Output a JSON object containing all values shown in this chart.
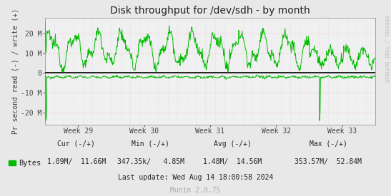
{
  "title": "Disk throughput for /dev/sdh - by month",
  "ylabel": "Pr second read (-) / write (+)",
  "background_color": "#e8e8e8",
  "plot_bg_color": "#f0f0f0",
  "grid_color_h": "#ffaaaa",
  "grid_color_v": "#ccccff",
  "line_color": "#00bb00",
  "zero_line_color": "#000000",
  "border_color": "#aaaaaa",
  "ylim": [
    -26000000,
    28000000
  ],
  "yticks": [
    -20000000,
    -10000000,
    0,
    10000000,
    20000000
  ],
  "ytick_labels": [
    "-20 M",
    "-10 M",
    "0",
    "10 M",
    "20 M"
  ],
  "week_labels": [
    "Week 29",
    "Week 30",
    "Week 31",
    "Week 32",
    "Week 33"
  ],
  "legend_label": "Bytes",
  "legend_color": "#00bb00",
  "cur_label": "Cur (-/+)",
  "min_label": "Min (-/+)",
  "avg_label": "Avg (-/+)",
  "max_label": "Max (-/+)",
  "cur_val": "1.09M/  11.66M",
  "min_val": "347.35k/   4.85M",
  "avg_val": "1.48M/  14.56M",
  "max_val": "353.57M/  52.84M",
  "last_update": "Last update: Wed Aug 14 18:00:58 2024",
  "munin_label": "Munin 2.0.75",
  "right_label": "RRDTOOL / TOBI OETIKER",
  "title_fontsize": 10,
  "axis_fontsize": 7,
  "legend_fontsize": 7
}
